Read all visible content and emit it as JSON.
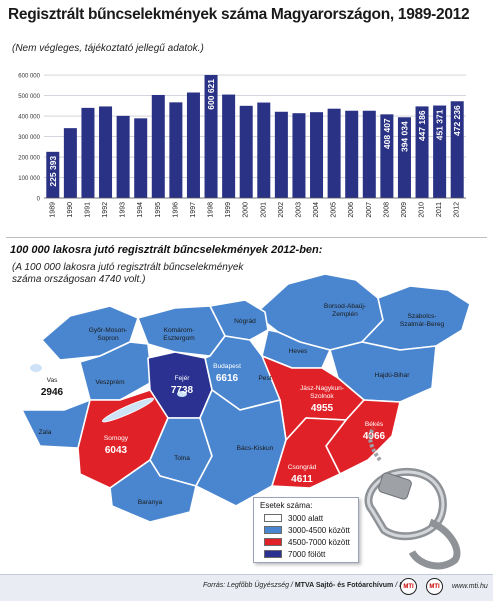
{
  "header": {
    "title": "Regisztrált bűncselekmények száma Magyarországon, 1989-2012",
    "subtitle": "(Nem végleges, tájékoztató jellegű adatok.)"
  },
  "chart_data": {
    "type": "bar",
    "categories": [
      "1989",
      "1990",
      "1991",
      "1992",
      "1993",
      "1994",
      "1995",
      "1996",
      "1997",
      "1998",
      "1999",
      "2000",
      "2001",
      "2002",
      "2003",
      "2004",
      "2005",
      "2006",
      "2007",
      "2008",
      "2009",
      "2010",
      "2011",
      "2012"
    ],
    "values": [
      225393,
      341000,
      440000,
      447000,
      401000,
      389000,
      503000,
      467000,
      515000,
      600621,
      505000,
      450000,
      466000,
      421000,
      414000,
      419000,
      436000,
      426000,
      426000,
      408407,
      394034,
      447186,
      451371,
      472236
    ],
    "labels": [
      "225 393",
      "",
      "",
      "",
      "",
      "",
      "",
      "",
      "",
      "600 621",
      "",
      "",
      "",
      "",
      "",
      "",
      "",
      "",
      "",
      "408 407",
      "394 034",
      "447 186",
      "451 371",
      "472 236"
    ],
    "yticks": [
      "0",
      "100 000",
      "200 000",
      "300 000",
      "400 000",
      "500 000",
      "600 000"
    ],
    "ylim": [
      0,
      620000
    ],
    "grid": true,
    "bar_color": "#2a3285"
  },
  "map": {
    "title": "100 000 lakosra jutó regisztrált bűncselekmények 2012-ben:",
    "note": "(A 100 000 lakosra jutó regisztrált bűncselekmények száma országosan 4740 volt.)",
    "counties": [
      {
        "name": "Borsod-Abaúj-Zemplén",
        "lines": [
          "Borsod-Abaúj-",
          "Zemplén"
        ],
        "value": ""
      },
      {
        "name": "Szabolcs-Szatmár-Bereg",
        "lines": [
          "Szabolcs-",
          "Szatmár-Bereg"
        ],
        "value": ""
      },
      {
        "name": "Nógrád",
        "lines": [
          "Nógrád"
        ],
        "value": ""
      },
      {
        "name": "Heves",
        "lines": [
          "Heves"
        ],
        "value": ""
      },
      {
        "name": "Hajdú-Bihar",
        "lines": [
          "Hajdú-Bihar"
        ],
        "value": ""
      },
      {
        "name": "Győr-Moson-Sopron",
        "lines": [
          "Győr-Moson-",
          "Sopron"
        ],
        "value": ""
      },
      {
        "name": "Komárom-Esztergom",
        "lines": [
          "Komárom-",
          "Esztergom"
        ],
        "value": ""
      },
      {
        "name": "Budapest",
        "lines": [
          "Budapest"
        ],
        "value": "6616"
      },
      {
        "name": "Pest",
        "lines": [
          "Pest"
        ],
        "value": ""
      },
      {
        "name": "Jász-Nagykun-Szolnok",
        "lines": [
          "Jász-Nagykun-",
          "Szolnok"
        ],
        "value": "4955"
      },
      {
        "name": "Vas",
        "lines": [
          "Vas"
        ],
        "value": "2946"
      },
      {
        "name": "Veszprém",
        "lines": [
          "Veszprém"
        ],
        "value": ""
      },
      {
        "name": "Fejér",
        "lines": [
          "Fejér"
        ],
        "value": "7738"
      },
      {
        "name": "Zala",
        "lines": [
          "Zala"
        ],
        "value": ""
      },
      {
        "name": "Somogy",
        "lines": [
          "Somogy"
        ],
        "value": "6043"
      },
      {
        "name": "Tolna",
        "lines": [
          "Tolna"
        ],
        "value": ""
      },
      {
        "name": "Bács-Kiskun",
        "lines": [
          "Bács-Kiskun"
        ],
        "value": ""
      },
      {
        "name": "Békés",
        "lines": [
          "Békés"
        ],
        "value": "4966"
      },
      {
        "name": "Csongrád",
        "lines": [
          "Csongrád"
        ],
        "value": "4611"
      },
      {
        "name": "Baranya",
        "lines": [
          "Baranya"
        ],
        "value": ""
      }
    ]
  },
  "legend": {
    "title": "Esetek száma:",
    "items": [
      {
        "label": "3000 alatt",
        "color": "#ffffff"
      },
      {
        "label": "3000-4500 között",
        "color": "#4a86cf"
      },
      {
        "label": "4500-7000 között",
        "color": "#e02228"
      },
      {
        "label": "7000 fölött",
        "color": "#2a3190"
      }
    ]
  },
  "footer": {
    "source_prefix": "Forrás: Legfőbb Ügyészség /",
    "source_bold": "MTVA Sajtó- és Fotóarchívum",
    "source_suffix": "/ MTI",
    "logo1": "MTI",
    "logo2": "MTI",
    "credit": "www.mti.hu"
  },
  "colors": {
    "under3000": "#ffffff",
    "mid": "#4a86cf",
    "high": "#e02228",
    "top": "#2a3190",
    "lake": "#cfe3f7"
  }
}
